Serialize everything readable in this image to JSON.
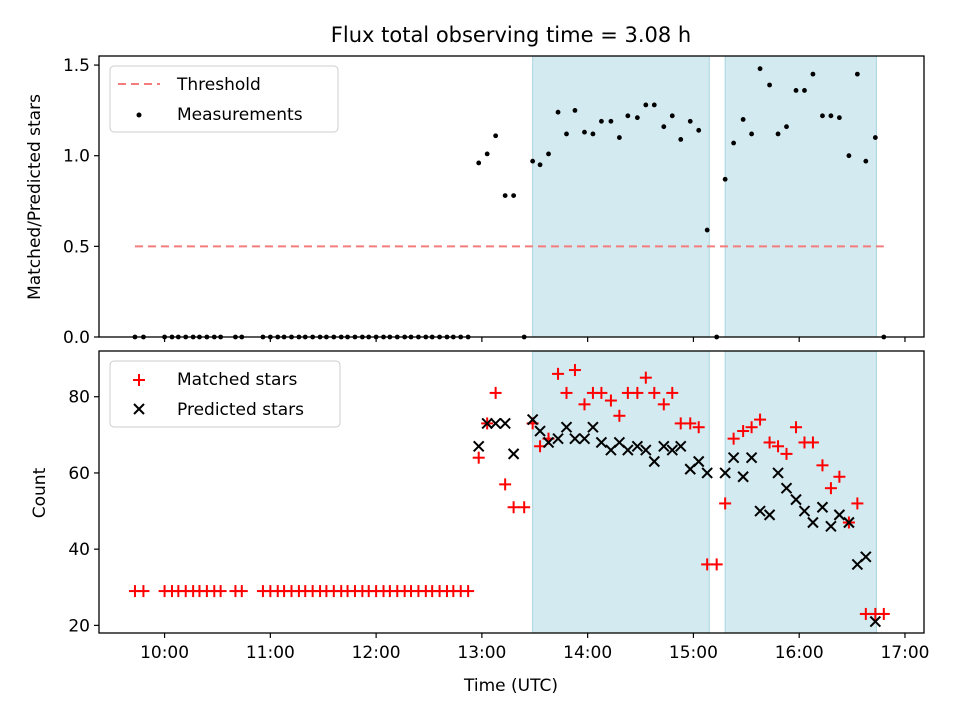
{
  "colors": {
    "threshold": "#f47c7c",
    "measurement": "#000000",
    "matched": "#ff0000",
    "predicted": "#000000",
    "shade": "#d3eaf0",
    "shade_edge": "#a8d4df"
  },
  "chart_data": [
    {
      "type": "scatter",
      "title": "Flux total observing time = 3.08 h",
      "xlabel": "",
      "ylabel": "Matched/Predicted stars",
      "xlim": [
        9.38,
        17.18
      ],
      "ylim": [
        0,
        1.55
      ],
      "yticks": [
        0.0,
        0.5,
        1.0,
        1.5
      ],
      "ytick_labels": [
        "0.0",
        "0.5",
        "1.0",
        "1.5"
      ],
      "xticks": [
        10,
        11,
        12,
        13,
        14,
        15,
        16,
        17
      ],
      "legend": {
        "placement": "upper-left",
        "entries": [
          "Threshold",
          "Measurements"
        ]
      },
      "shaded_intervals": [
        [
          13.48,
          15.15
        ],
        [
          15.3,
          16.73
        ]
      ],
      "threshold": {
        "name": "Threshold",
        "y": 0.5,
        "x_range": [
          9.72,
          16.8
        ]
      },
      "series": [
        {
          "name": "Measurements",
          "x": [
            9.72,
            9.8,
            10.0,
            10.07,
            10.13,
            10.2,
            10.27,
            10.33,
            10.4,
            10.47,
            10.53,
            10.67,
            10.73,
            10.93,
            11.0,
            11.07,
            11.13,
            11.2,
            11.27,
            11.33,
            11.4,
            11.47,
            11.53,
            11.6,
            11.67,
            11.73,
            11.8,
            11.87,
            11.93,
            12.0,
            12.07,
            12.13,
            12.2,
            12.27,
            12.33,
            12.4,
            12.47,
            12.53,
            12.6,
            12.67,
            12.73,
            12.8,
            12.87,
            12.97,
            13.05,
            13.13,
            13.22,
            13.3,
            13.4,
            13.48,
            13.55,
            13.63,
            13.72,
            13.8,
            13.88,
            13.97,
            14.05,
            14.13,
            14.22,
            14.3,
            14.38,
            14.47,
            14.55,
            14.63,
            14.72,
            14.8,
            14.88,
            14.97,
            15.05,
            15.13,
            15.22,
            15.3,
            15.38,
            15.47,
            15.55,
            15.63,
            15.72,
            15.8,
            15.88,
            15.97,
            16.05,
            16.13,
            16.22,
            16.3,
            16.38,
            16.47,
            16.55,
            16.63,
            16.72,
            16.8
          ],
          "y": [
            0,
            0,
            0,
            0,
            0,
            0,
            0,
            0,
            0,
            0,
            0,
            0,
            0,
            0,
            0,
            0,
            0,
            0,
            0,
            0,
            0,
            0,
            0,
            0,
            0,
            0,
            0,
            0,
            0,
            0,
            0,
            0,
            0,
            0,
            0,
            0,
            0,
            0,
            0,
            0,
            0,
            0,
            0,
            0.96,
            1.01,
            1.11,
            0.78,
            0.78,
            0.0,
            0.97,
            0.95,
            1.01,
            1.24,
            1.12,
            1.25,
            1.13,
            1.12,
            1.19,
            1.19,
            1.1,
            1.22,
            1.21,
            1.28,
            1.28,
            1.16,
            1.22,
            1.09,
            1.19,
            1.14,
            0.59,
            0.0,
            0.87,
            1.07,
            1.2,
            1.12,
            1.48,
            1.39,
            1.12,
            1.16,
            1.36,
            1.36,
            1.45,
            1.22,
            1.22,
            1.21,
            1.0,
            1.45,
            0.97,
            1.1,
            0.0
          ]
        }
      ]
    },
    {
      "type": "scatter",
      "title": "",
      "xlabel": "Time (UTC)",
      "ylabel": "Count",
      "xlim": [
        9.38,
        17.18
      ],
      "ylim": [
        18,
        92
      ],
      "yticks": [
        20,
        40,
        60,
        80
      ],
      "ytick_labels": [
        "20",
        "40",
        "60",
        "80"
      ],
      "xticks": [
        10,
        11,
        12,
        13,
        14,
        15,
        16,
        17
      ],
      "xtick_labels": [
        "10:00",
        "11:00",
        "12:00",
        "13:00",
        "14:00",
        "15:00",
        "16:00",
        "17:00"
      ],
      "legend": {
        "placement": "upper-left",
        "entries": [
          "Matched stars",
          "Predicted stars"
        ]
      },
      "shaded_intervals": [
        [
          13.48,
          15.15
        ],
        [
          15.3,
          16.73
        ]
      ],
      "series": [
        {
          "name": "Matched stars",
          "marker": "plus",
          "x": [
            9.72,
            9.8,
            10.0,
            10.07,
            10.13,
            10.2,
            10.27,
            10.33,
            10.4,
            10.47,
            10.53,
            10.67,
            10.73,
            10.93,
            11.0,
            11.07,
            11.13,
            11.2,
            11.27,
            11.33,
            11.4,
            11.47,
            11.53,
            11.6,
            11.67,
            11.73,
            11.8,
            11.87,
            11.93,
            12.0,
            12.07,
            12.13,
            12.2,
            12.27,
            12.33,
            12.4,
            12.47,
            12.53,
            12.6,
            12.67,
            12.73,
            12.8,
            12.87,
            12.97,
            13.05,
            13.13,
            13.22,
            13.3,
            13.4,
            13.48,
            13.55,
            13.63,
            13.72,
            13.8,
            13.88,
            13.97,
            14.05,
            14.13,
            14.22,
            14.3,
            14.38,
            14.47,
            14.55,
            14.63,
            14.72,
            14.8,
            14.88,
            14.97,
            15.05,
            15.13,
            15.22,
            15.3,
            15.38,
            15.47,
            15.55,
            15.63,
            15.72,
            15.8,
            15.88,
            15.97,
            16.05,
            16.13,
            16.22,
            16.3,
            16.38,
            16.47,
            16.55,
            16.63,
            16.72,
            16.8
          ],
          "y": [
            29,
            29,
            29,
            29,
            29,
            29,
            29,
            29,
            29,
            29,
            29,
            29,
            29,
            29,
            29,
            29,
            29,
            29,
            29,
            29,
            29,
            29,
            29,
            29,
            29,
            29,
            29,
            29,
            29,
            29,
            29,
            29,
            29,
            29,
            29,
            29,
            29,
            29,
            29,
            29,
            29,
            29,
            29,
            64,
            73,
            81,
            57,
            51,
            51,
            73,
            67,
            69,
            86,
            81,
            87,
            78,
            81,
            81,
            79,
            75,
            81,
            81,
            85,
            81,
            78,
            81,
            73,
            73,
            72,
            36,
            36,
            52,
            69,
            71,
            72,
            74,
            68,
            67,
            65,
            72,
            68,
            68,
            62,
            56,
            59,
            47,
            52,
            23,
            23,
            23
          ]
        },
        {
          "name": "Predicted stars",
          "marker": "x",
          "x": [
            12.97,
            13.05,
            13.13,
            13.22,
            13.3,
            13.48,
            13.55,
            13.63,
            13.72,
            13.8,
            13.88,
            13.97,
            14.05,
            14.13,
            14.22,
            14.3,
            14.38,
            14.47,
            14.55,
            14.63,
            14.72,
            14.8,
            14.88,
            14.97,
            15.05,
            15.13,
            15.3,
            15.38,
            15.47,
            15.55,
            15.63,
            15.72,
            15.8,
            15.88,
            15.97,
            16.05,
            16.13,
            16.22,
            16.3,
            16.38,
            16.47,
            16.55,
            16.63,
            16.72
          ],
          "y": [
            67,
            73,
            73,
            73,
            65,
            74,
            71,
            68,
            69,
            72,
            69,
            69,
            72,
            68,
            66,
            68,
            66,
            67,
            66,
            63,
            67,
            66,
            67,
            61,
            63,
            60,
            60,
            64,
            59,
            64,
            50,
            49,
            60,
            56,
            53,
            50,
            47,
            51,
            46,
            49,
            47,
            36,
            38,
            21
          ]
        }
      ]
    }
  ]
}
